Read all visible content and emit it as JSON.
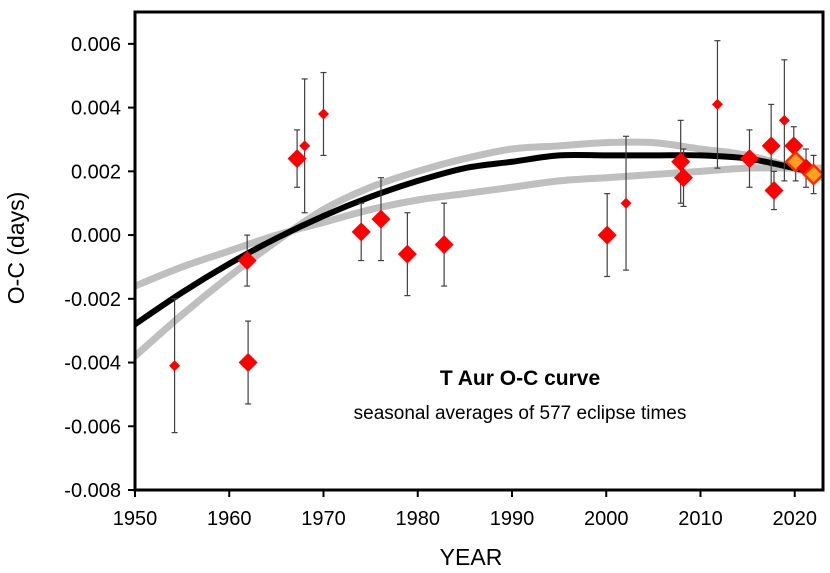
{
  "chart_data": {
    "type": "scatter",
    "title": "T Aur O-C curve",
    "subtitle": "seasonal averages of 577 eclipse times",
    "xlabel": "YEAR",
    "ylabel": "O-C (days)",
    "xlim": [
      1950,
      2023
    ],
    "ylim": [
      -0.008,
      0.007
    ],
    "x_ticks": [
      1950,
      1960,
      1970,
      1980,
      1990,
      2000,
      2010,
      2020
    ],
    "x_tick_labels": [
      "1950",
      "1960",
      "1970",
      "1980",
      "1990",
      "2000",
      "2010",
      "2020"
    ],
    "y_ticks": [
      -0.008,
      -0.006,
      -0.004,
      -0.002,
      0.0,
      0.002,
      0.004,
      0.006
    ],
    "y_tick_labels": [
      "-0.008",
      "-0.006",
      "-0.004",
      "-0.002",
      "0.000",
      "0.002",
      "0.004",
      "0.006"
    ],
    "grid": false,
    "colors": {
      "point": "#ff0000",
      "highlight_point": "#ffa020",
      "highlight_border": "#ff2a00",
      "fit": "#000000",
      "bounds": "#bfbfbf",
      "error_bar": "#404040"
    },
    "points": [
      {
        "x": 1954.2,
        "y": -0.0041,
        "err": 0.0021,
        "size": "small"
      },
      {
        "x": 1961.9,
        "y": -0.0008,
        "err": 0.0008,
        "size": "large"
      },
      {
        "x": 1962.0,
        "y": -0.004,
        "err": 0.0013,
        "size": "large"
      },
      {
        "x": 1967.2,
        "y": 0.0024,
        "err": 0.0009,
        "size": "large"
      },
      {
        "x": 1968.0,
        "y": 0.0028,
        "err": 0.0021,
        "size": "small"
      },
      {
        "x": 1970.0,
        "y": 0.0038,
        "err": 0.0013,
        "size": "small"
      },
      {
        "x": 1974.0,
        "y": 0.0001,
        "err": 0.0009,
        "size": "large"
      },
      {
        "x": 1976.1,
        "y": 0.0005,
        "err": 0.0013,
        "size": "large"
      },
      {
        "x": 1978.9,
        "y": -0.0006,
        "err": 0.0013,
        "size": "large"
      },
      {
        "x": 1982.8,
        "y": -0.0003,
        "err": 0.0013,
        "size": "large"
      },
      {
        "x": 2000.1,
        "y": 0.0,
        "err": 0.0013,
        "size": "large"
      },
      {
        "x": 2002.1,
        "y": 0.001,
        "err": 0.0021,
        "size": "small"
      },
      {
        "x": 2007.9,
        "y": 0.0023,
        "err": 0.0013,
        "size": "large"
      },
      {
        "x": 2008.2,
        "y": 0.0018,
        "err": 0.0009,
        "size": "large"
      },
      {
        "x": 2011.8,
        "y": 0.0041,
        "err": 0.002,
        "size": "small"
      },
      {
        "x": 2015.2,
        "y": 0.0024,
        "err": 0.0009,
        "size": "large"
      },
      {
        "x": 2017.5,
        "y": 0.0028,
        "err": 0.0013,
        "size": "large"
      },
      {
        "x": 2017.8,
        "y": 0.0014,
        "err": 0.0006,
        "size": "large"
      },
      {
        "x": 2018.9,
        "y": 0.0036,
        "err": 0.0019,
        "size": "small"
      },
      {
        "x": 2019.9,
        "y": 0.0028,
        "err": 0.0006,
        "size": "large"
      },
      {
        "x": 2020.1,
        "y": 0.0023,
        "err": 0.0006,
        "size": "large",
        "highlight": true
      },
      {
        "x": 2021.2,
        "y": 0.0021,
        "err": 0.0006,
        "size": "large"
      },
      {
        "x": 2022.0,
        "y": 0.0019,
        "err": 0.0006,
        "size": "large",
        "highlight": true
      }
    ],
    "fit_curve": {
      "x": [
        1950,
        1955,
        1960,
        1965,
        1970,
        1975,
        1980,
        1985,
        1990,
        1995,
        2000,
        2005,
        2010,
        2015,
        2020,
        2023
      ],
      "y": [
        -0.0028,
        -0.0018,
        -0.0009,
        -0.0001,
        0.0006,
        0.0012,
        0.0017,
        0.0021,
        0.0023,
        0.0025,
        0.0025,
        0.0025,
        0.0025,
        0.0024,
        0.0021,
        0.0019
      ]
    },
    "upper_bound_curve": {
      "x": [
        1950,
        1955,
        1960,
        1965,
        1970,
        1975,
        1980,
        1985,
        1990,
        1995,
        2000,
        2005,
        2010,
        2015,
        2020,
        2023
      ],
      "y": [
        -0.0038,
        -0.0025,
        -0.0013,
        -0.0002,
        0.0008,
        0.0015,
        0.002,
        0.0024,
        0.0027,
        0.0028,
        0.0029,
        0.0029,
        0.0027,
        0.0025,
        0.0021,
        0.0018
      ]
    },
    "lower_bound_curve": {
      "x": [
        1950,
        1955,
        1960,
        1965,
        1970,
        1975,
        1980,
        1985,
        1990,
        1995,
        2000,
        2005,
        2010,
        2015,
        2020,
        2023
      ],
      "y": [
        -0.0016,
        -0.001,
        -0.0005,
        0.0,
        0.0004,
        0.0008,
        0.0011,
        0.0013,
        0.0015,
        0.0017,
        0.0018,
        0.0019,
        0.002,
        0.0021,
        0.0021,
        0.0021
      ]
    }
  }
}
